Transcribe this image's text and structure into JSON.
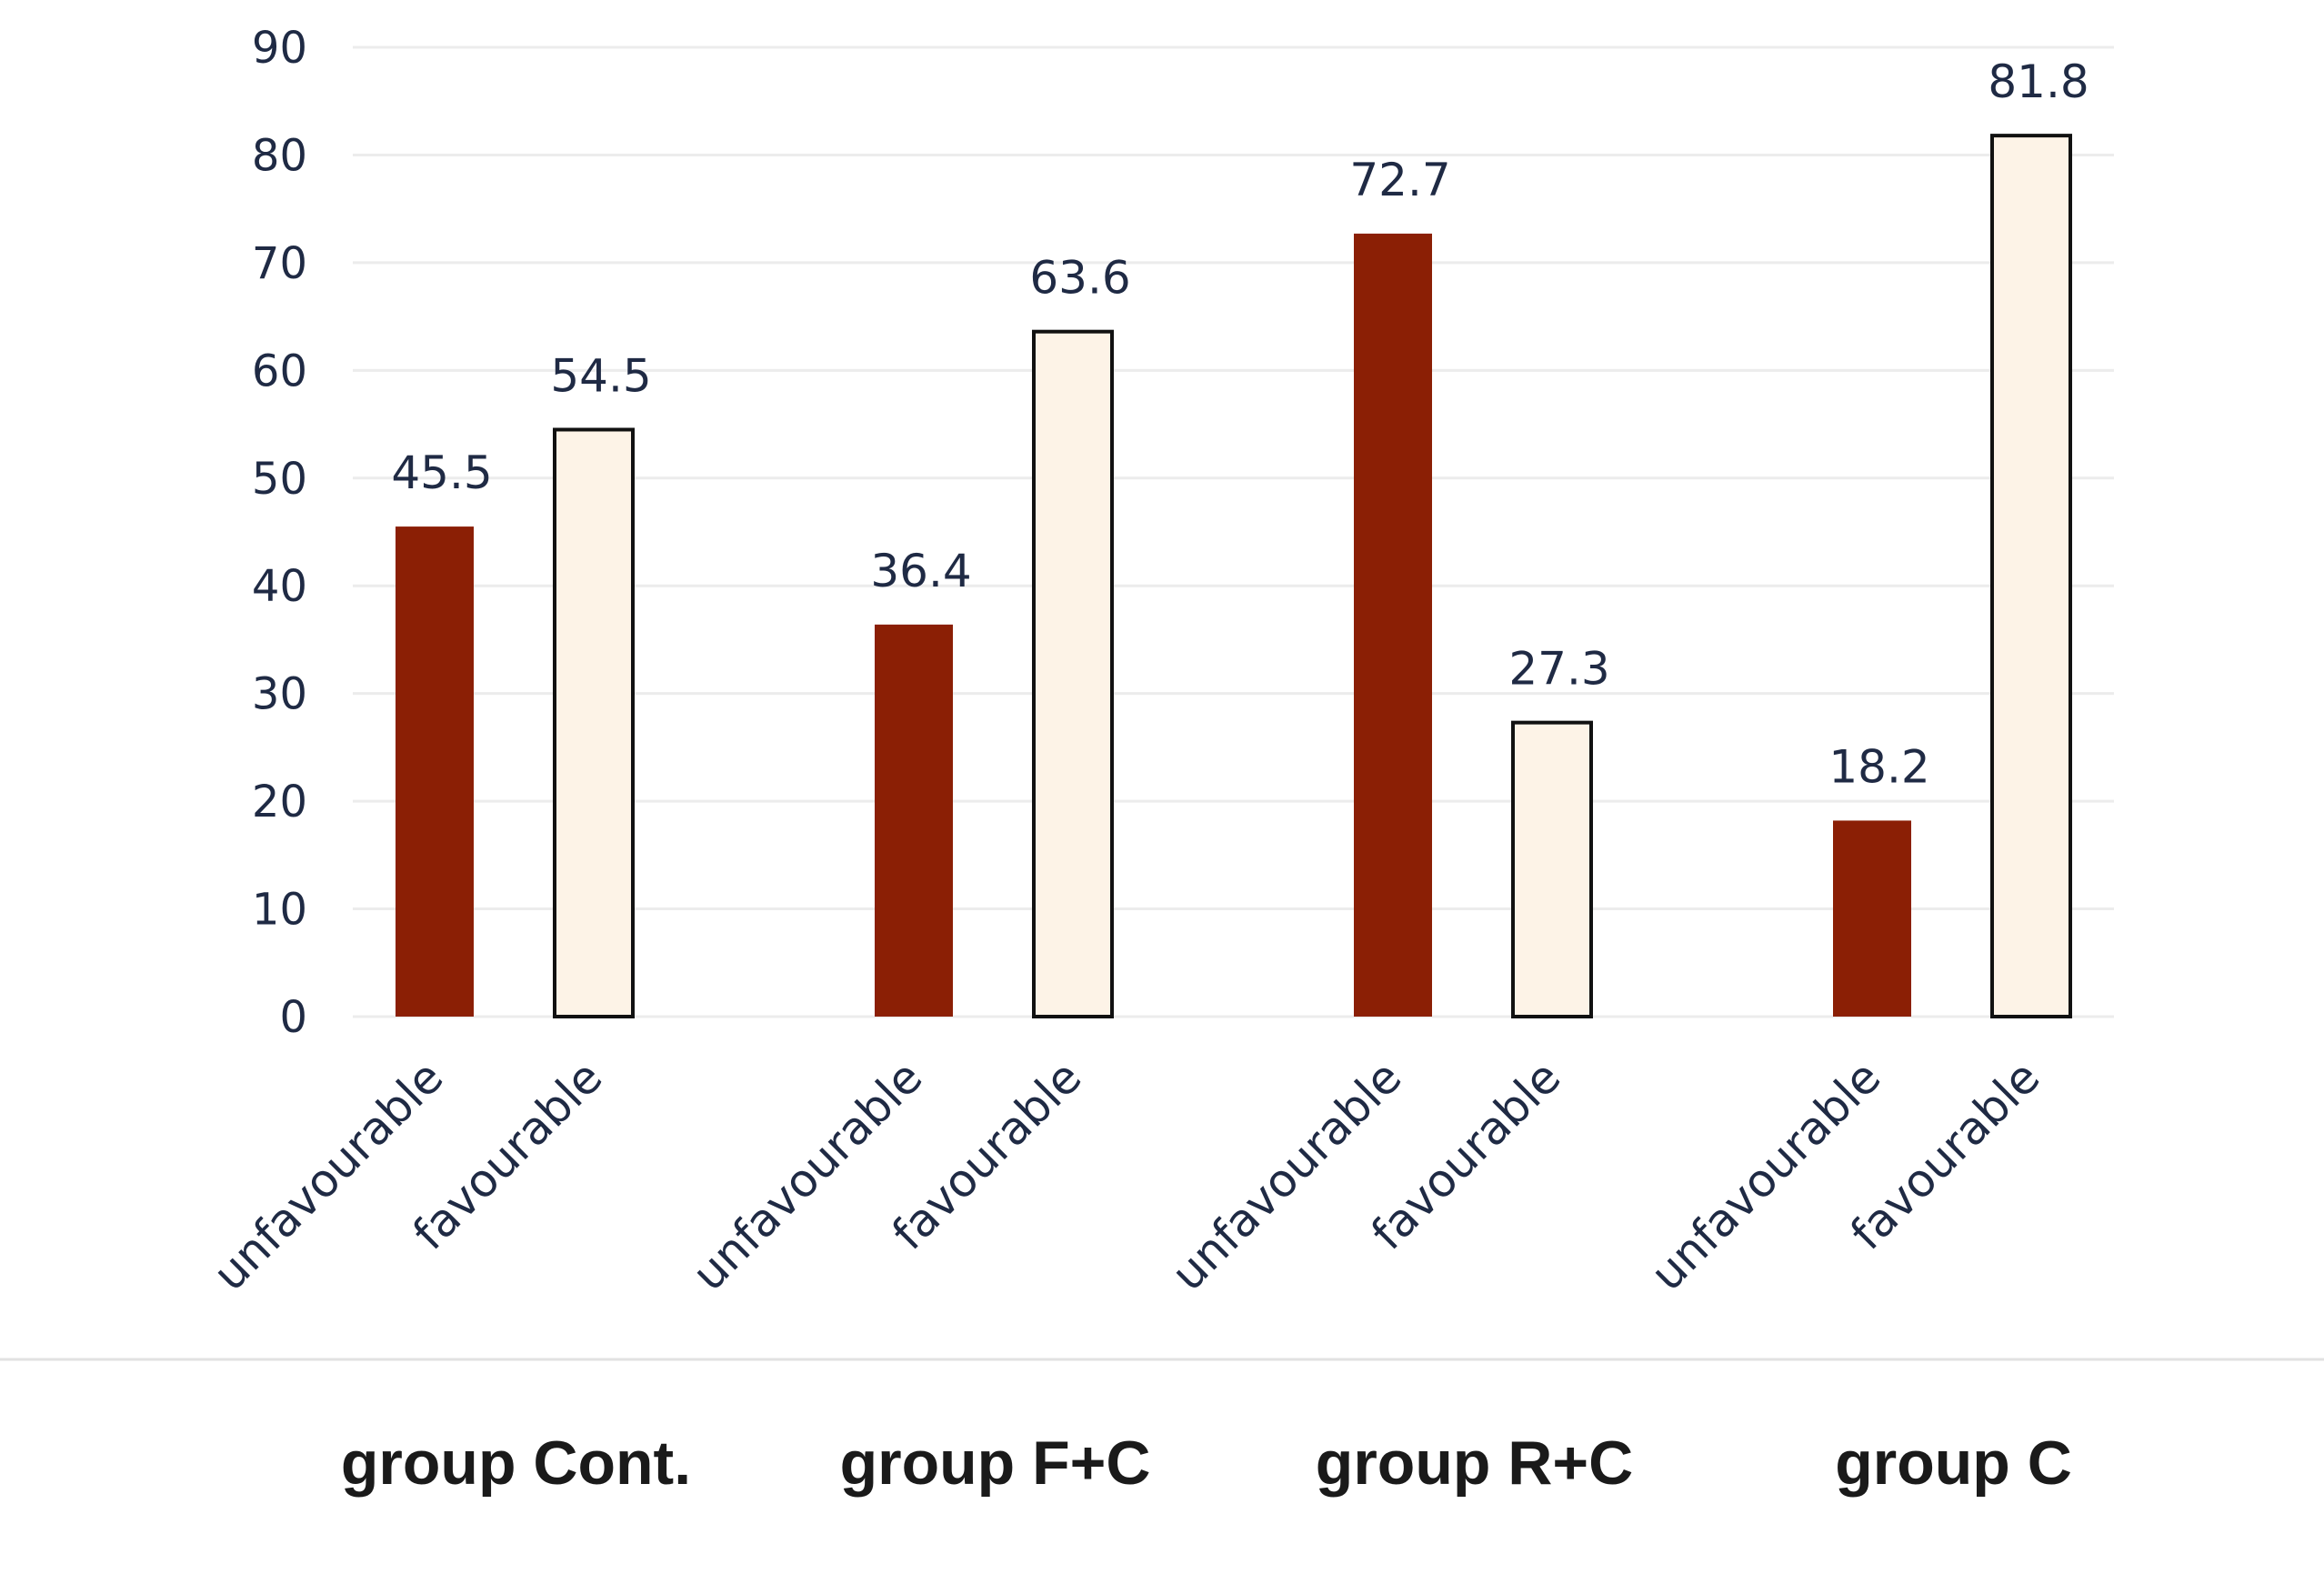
{
  "chart_data": {
    "type": "bar",
    "title": "",
    "xlabel": "",
    "ylabel": "",
    "ylim": [
      0,
      90
    ],
    "yticks": [
      0,
      10,
      20,
      30,
      40,
      50,
      60,
      70,
      80,
      90
    ],
    "grid": true,
    "groups": [
      {
        "name": "group Cont.",
        "bars": [
          {
            "category": "unfavourable",
            "value": 45.5,
            "label": "45.5"
          },
          {
            "category": "favourable",
            "value": 54.5,
            "label": "54.5"
          }
        ]
      },
      {
        "name": "group F+C",
        "bars": [
          {
            "category": "unfavourable",
            "value": 36.4,
            "label": "36.4"
          },
          {
            "category": "favourable",
            "value": 63.6,
            "label": "63.6"
          }
        ]
      },
      {
        "name": "group R+C",
        "bars": [
          {
            "category": "unfavourable",
            "value": 72.7,
            "label": "72.7"
          },
          {
            "category": "favourable",
            "value": 27.3,
            "label": "27.3"
          }
        ]
      },
      {
        "name": "group C",
        "bars": [
          {
            "category": "unfavourable",
            "value": 18.2,
            "label": "18.2"
          },
          {
            "category": "favourable",
            "value": 81.8,
            "label": "81.8"
          }
        ]
      }
    ],
    "colors": {
      "unfavourable": "#8b1f05",
      "favourable": "#fdf3e7",
      "favourable_edge": "#111111",
      "grid": "#ececec",
      "separator": "#e2e2e2"
    }
  }
}
